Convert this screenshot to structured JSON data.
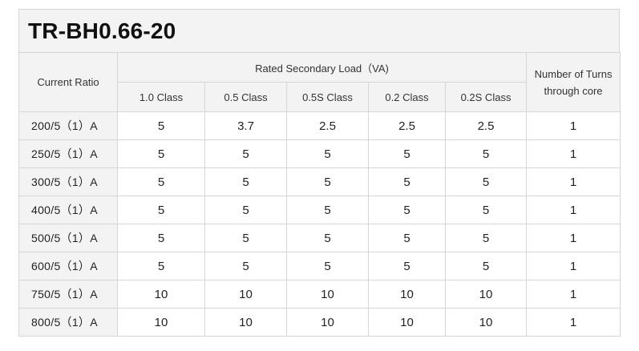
{
  "title": "TR-BH0.66-20",
  "header": {
    "current_ratio": "Current Ratio",
    "rated_load": "Rated Secondary Load（VA)",
    "turns": "Number of Turns through core",
    "classes": [
      "1.0 Class",
      "0.5 Class",
      "0.5S Class",
      "0.2 Class",
      "0.2S Class"
    ]
  },
  "rows": [
    {
      "ratio": "200/5（1）A",
      "values": [
        "5",
        "3.7",
        "2.5",
        "2.5",
        "2.5"
      ],
      "turns": "1"
    },
    {
      "ratio": "250/5（1）A",
      "values": [
        "5",
        "5",
        "5",
        "5",
        "5"
      ],
      "turns": "1"
    },
    {
      "ratio": "300/5（1）A",
      "values": [
        "5",
        "5",
        "5",
        "5",
        "5"
      ],
      "turns": "1"
    },
    {
      "ratio": "400/5（1）A",
      "values": [
        "5",
        "5",
        "5",
        "5",
        "5"
      ],
      "turns": "1"
    },
    {
      "ratio": "500/5（1）A",
      "values": [
        "5",
        "5",
        "5",
        "5",
        "5"
      ],
      "turns": "1"
    },
    {
      "ratio": "600/5（1）A",
      "values": [
        "5",
        "5",
        "5",
        "5",
        "5"
      ],
      "turns": "1"
    },
    {
      "ratio": "750/5（1）A",
      "values": [
        "10",
        "10",
        "10",
        "10",
        "10"
      ],
      "turns": "1"
    },
    {
      "ratio": "800/5（1）A",
      "values": [
        "10",
        "10",
        "10",
        "10",
        "10"
      ],
      "turns": "1"
    }
  ]
}
